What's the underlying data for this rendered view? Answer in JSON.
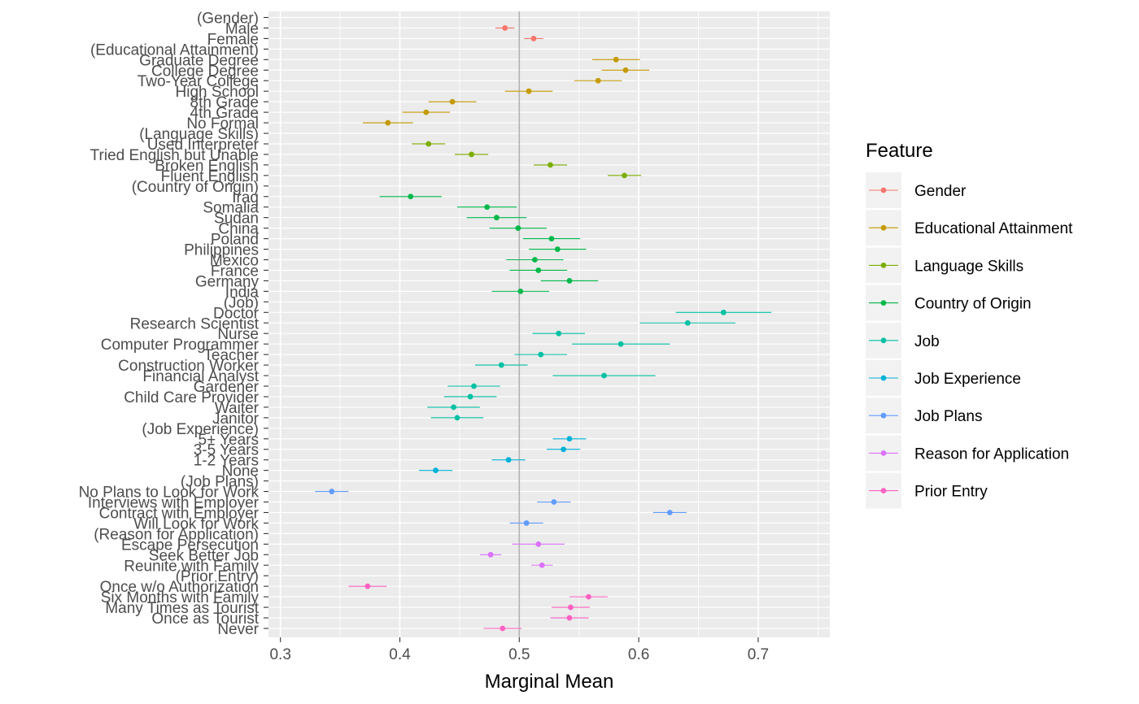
{
  "chart_data": {
    "type": "scatter",
    "subtype": "point-range (dot and whisker)",
    "xlabel": "Marginal Mean",
    "ylabel": "",
    "xlim": [
      0.29,
      0.76
    ],
    "x_ticks": [
      0.3,
      0.4,
      0.5,
      0.6,
      0.7
    ],
    "x_tick_labels": [
      "0.3",
      "0.4",
      "0.5",
      "0.6",
      "0.7"
    ],
    "reference_line_x": 0.5,
    "grid": true,
    "legend": {
      "title": "Feature",
      "position": "right",
      "entries": [
        {
          "label": "Gender",
          "color": "#F8766D"
        },
        {
          "label": "Educational Attainment",
          "color": "#C49A00"
        },
        {
          "label": "Language Skills",
          "color": "#7CAE00"
        },
        {
          "label": "Country of Origin",
          "color": "#00B84A"
        },
        {
          "label": "Job",
          "color": "#00C1A3"
        },
        {
          "label": "Job Experience",
          "color": "#00B2D8"
        },
        {
          "label": "Job Plans",
          "color": "#619CFF"
        },
        {
          "label": "Reason for Application",
          "color": "#DB72FB"
        },
        {
          "label": "Prior Entry",
          "color": "#FF61C3"
        }
      ]
    },
    "rows": [
      {
        "label": "(Gender)",
        "feature": null
      },
      {
        "label": "Male",
        "feature": 0,
        "estimate": 0.488,
        "lower": 0.48,
        "upper": 0.496
      },
      {
        "label": "Female",
        "feature": 0,
        "estimate": 0.512,
        "lower": 0.504,
        "upper": 0.52
      },
      {
        "label": "(Educational Attainment)",
        "feature": null
      },
      {
        "label": "Graduate Degree",
        "feature": 1,
        "estimate": 0.581,
        "lower": 0.561,
        "upper": 0.601
      },
      {
        "label": "College Degree",
        "feature": 1,
        "estimate": 0.589,
        "lower": 0.569,
        "upper": 0.609
      },
      {
        "label": "Two-Year College",
        "feature": 1,
        "estimate": 0.566,
        "lower": 0.546,
        "upper": 0.586
      },
      {
        "label": "High School",
        "feature": 1,
        "estimate": 0.508,
        "lower": 0.488,
        "upper": 0.528
      },
      {
        "label": "8th Grade",
        "feature": 1,
        "estimate": 0.444,
        "lower": 0.424,
        "upper": 0.464
      },
      {
        "label": "4th Grade",
        "feature": 1,
        "estimate": 0.422,
        "lower": 0.402,
        "upper": 0.442
      },
      {
        "label": "No Formal",
        "feature": 1,
        "estimate": 0.39,
        "lower": 0.369,
        "upper": 0.411
      },
      {
        "label": "(Language Skills)",
        "feature": null
      },
      {
        "label": "Used Interpreter",
        "feature": 2,
        "estimate": 0.424,
        "lower": 0.41,
        "upper": 0.438
      },
      {
        "label": "Tried English but Unable",
        "feature": 2,
        "estimate": 0.46,
        "lower": 0.446,
        "upper": 0.474
      },
      {
        "label": "Broken English",
        "feature": 2,
        "estimate": 0.526,
        "lower": 0.512,
        "upper": 0.54
      },
      {
        "label": "Fluent English",
        "feature": 2,
        "estimate": 0.588,
        "lower": 0.574,
        "upper": 0.602
      },
      {
        "label": "(Country of Origin)",
        "feature": null
      },
      {
        "label": "Iraq",
        "feature": 3,
        "estimate": 0.409,
        "lower": 0.383,
        "upper": 0.435
      },
      {
        "label": "Somalia",
        "feature": 3,
        "estimate": 0.473,
        "lower": 0.448,
        "upper": 0.498
      },
      {
        "label": "Sudan",
        "feature": 3,
        "estimate": 0.481,
        "lower": 0.456,
        "upper": 0.506
      },
      {
        "label": "China",
        "feature": 3,
        "estimate": 0.499,
        "lower": 0.475,
        "upper": 0.523
      },
      {
        "label": "Poland",
        "feature": 3,
        "estimate": 0.527,
        "lower": 0.503,
        "upper": 0.551
      },
      {
        "label": "Philippines",
        "feature": 3,
        "estimate": 0.532,
        "lower": 0.508,
        "upper": 0.556
      },
      {
        "label": "Mexico",
        "feature": 3,
        "estimate": 0.513,
        "lower": 0.489,
        "upper": 0.537
      },
      {
        "label": "France",
        "feature": 3,
        "estimate": 0.516,
        "lower": 0.492,
        "upper": 0.54
      },
      {
        "label": "Germany",
        "feature": 3,
        "estimate": 0.542,
        "lower": 0.518,
        "upper": 0.566
      },
      {
        "label": "India",
        "feature": 3,
        "estimate": 0.501,
        "lower": 0.477,
        "upper": 0.525
      },
      {
        "label": "(Job)",
        "feature": null
      },
      {
        "label": "Doctor",
        "feature": 4,
        "estimate": 0.671,
        "lower": 0.631,
        "upper": 0.711
      },
      {
        "label": "Research Scientist",
        "feature": 4,
        "estimate": 0.641,
        "lower": 0.601,
        "upper": 0.681
      },
      {
        "label": "Nurse",
        "feature": 4,
        "estimate": 0.533,
        "lower": 0.511,
        "upper": 0.555
      },
      {
        "label": "Computer Programmer",
        "feature": 4,
        "estimate": 0.585,
        "lower": 0.544,
        "upper": 0.626
      },
      {
        "label": "Teacher",
        "feature": 4,
        "estimate": 0.518,
        "lower": 0.496,
        "upper": 0.54
      },
      {
        "label": "Construction Worker",
        "feature": 4,
        "estimate": 0.485,
        "lower": 0.463,
        "upper": 0.507
      },
      {
        "label": "Financial Analyst",
        "feature": 4,
        "estimate": 0.571,
        "lower": 0.528,
        "upper": 0.614
      },
      {
        "label": "Gardener",
        "feature": 4,
        "estimate": 0.462,
        "lower": 0.44,
        "upper": 0.484
      },
      {
        "label": "Child Care Provider",
        "feature": 4,
        "estimate": 0.459,
        "lower": 0.437,
        "upper": 0.481
      },
      {
        "label": "Waiter",
        "feature": 4,
        "estimate": 0.445,
        "lower": 0.423,
        "upper": 0.467
      },
      {
        "label": "Janitor",
        "feature": 4,
        "estimate": 0.448,
        "lower": 0.426,
        "upper": 0.47
      },
      {
        "label": "(Job Experience)",
        "feature": null
      },
      {
        "label": "5+ Years",
        "feature": 5,
        "estimate": 0.542,
        "lower": 0.528,
        "upper": 0.556
      },
      {
        "label": "3-5 Years",
        "feature": 5,
        "estimate": 0.537,
        "lower": 0.523,
        "upper": 0.551
      },
      {
        "label": "1-2 Years",
        "feature": 5,
        "estimate": 0.491,
        "lower": 0.477,
        "upper": 0.505
      },
      {
        "label": "None",
        "feature": 5,
        "estimate": 0.43,
        "lower": 0.416,
        "upper": 0.444
      },
      {
        "label": "(Job Plans)",
        "feature": null
      },
      {
        "label": "No Plans to Look for Work",
        "feature": 6,
        "estimate": 0.343,
        "lower": 0.329,
        "upper": 0.357
      },
      {
        "label": "Interviews with Employer",
        "feature": 6,
        "estimate": 0.529,
        "lower": 0.515,
        "upper": 0.543
      },
      {
        "label": "Contract with Employer",
        "feature": 6,
        "estimate": 0.626,
        "lower": 0.612,
        "upper": 0.64
      },
      {
        "label": "Will Look for Work",
        "feature": 6,
        "estimate": 0.506,
        "lower": 0.492,
        "upper": 0.52
      },
      {
        "label": "(Reason for Application)",
        "feature": null
      },
      {
        "label": "Escape Persecution",
        "feature": 7,
        "estimate": 0.516,
        "lower": 0.494,
        "upper": 0.538
      },
      {
        "label": "Seek Better Job",
        "feature": 7,
        "estimate": 0.476,
        "lower": 0.467,
        "upper": 0.485
      },
      {
        "label": "Reunite with Family",
        "feature": 7,
        "estimate": 0.519,
        "lower": 0.51,
        "upper": 0.528
      },
      {
        "label": "(Prior Entry)",
        "feature": null
      },
      {
        "label": "Once w/o Authorization",
        "feature": 8,
        "estimate": 0.373,
        "lower": 0.357,
        "upper": 0.389
      },
      {
        "label": "Six Months with Family",
        "feature": 8,
        "estimate": 0.558,
        "lower": 0.542,
        "upper": 0.574
      },
      {
        "label": "Many Times as Tourist",
        "feature": 8,
        "estimate": 0.543,
        "lower": 0.527,
        "upper": 0.559
      },
      {
        "label": "Once as Tourist",
        "feature": 8,
        "estimate": 0.542,
        "lower": 0.526,
        "upper": 0.558
      },
      {
        "label": "Never",
        "feature": 8,
        "estimate": 0.486,
        "lower": 0.47,
        "upper": 0.502
      }
    ]
  }
}
